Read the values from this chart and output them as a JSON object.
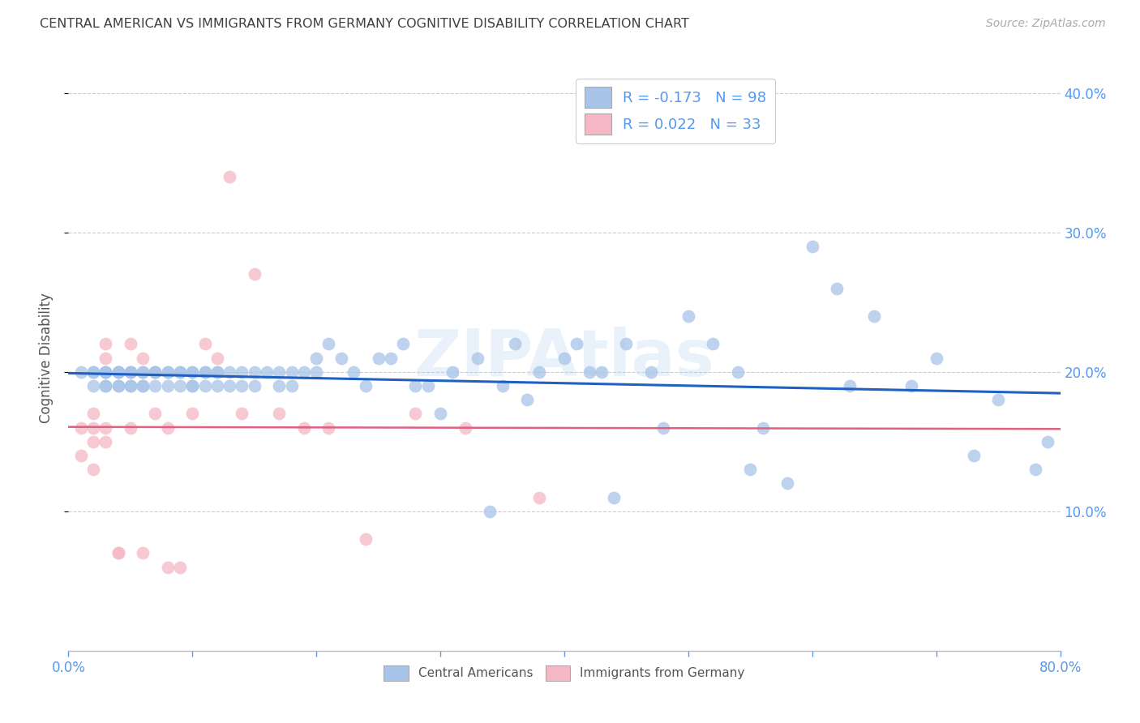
{
  "title": "CENTRAL AMERICAN VS IMMIGRANTS FROM GERMANY COGNITIVE DISABILITY CORRELATION CHART",
  "source": "Source: ZipAtlas.com",
  "ylabel": "Cognitive Disability",
  "xlim": [
    0.0,
    0.8
  ],
  "ylim": [
    0.0,
    0.42
  ],
  "yticks": [
    0.1,
    0.2,
    0.3,
    0.4
  ],
  "xticks": [
    0.0,
    0.1,
    0.2,
    0.3,
    0.4,
    0.5,
    0.6,
    0.7,
    0.8
  ],
  "blue_R": -0.173,
  "blue_N": 98,
  "pink_R": 0.022,
  "pink_N": 33,
  "blue_scatter_color": "#a8c4e8",
  "blue_line_color": "#2060c0",
  "pink_scatter_color": "#f5b8c4",
  "pink_line_color": "#e06080",
  "watermark": "ZIPAtlas",
  "grid_color": "#cccccc",
  "title_color": "#404040",
  "axis_label_color": "#555555",
  "tick_color": "#5599ee",
  "legend_text_color": "#5599ee",
  "blue_scatter_x": [
    0.01,
    0.02,
    0.02,
    0.02,
    0.03,
    0.03,
    0.03,
    0.03,
    0.03,
    0.04,
    0.04,
    0.04,
    0.04,
    0.04,
    0.05,
    0.05,
    0.05,
    0.05,
    0.05,
    0.06,
    0.06,
    0.06,
    0.06,
    0.07,
    0.07,
    0.07,
    0.07,
    0.08,
    0.08,
    0.08,
    0.09,
    0.09,
    0.09,
    0.1,
    0.1,
    0.1,
    0.1,
    0.11,
    0.11,
    0.11,
    0.12,
    0.12,
    0.12,
    0.13,
    0.13,
    0.14,
    0.14,
    0.15,
    0.15,
    0.16,
    0.17,
    0.17,
    0.18,
    0.18,
    0.19,
    0.2,
    0.2,
    0.21,
    0.22,
    0.23,
    0.24,
    0.25,
    0.26,
    0.27,
    0.28,
    0.3,
    0.31,
    0.33,
    0.35,
    0.36,
    0.38,
    0.4,
    0.41,
    0.43,
    0.45,
    0.47,
    0.5,
    0.52,
    0.55,
    0.58,
    0.6,
    0.63,
    0.65,
    0.68,
    0.7,
    0.73,
    0.75,
    0.78,
    0.79,
    0.44,
    0.48,
    0.54,
    0.62,
    0.34,
    0.29,
    0.37,
    0.42,
    0.56
  ],
  "blue_scatter_y": [
    0.2,
    0.2,
    0.19,
    0.2,
    0.2,
    0.19,
    0.2,
    0.19,
    0.2,
    0.2,
    0.19,
    0.2,
    0.19,
    0.2,
    0.2,
    0.19,
    0.2,
    0.19,
    0.2,
    0.2,
    0.19,
    0.2,
    0.19,
    0.2,
    0.2,
    0.19,
    0.2,
    0.2,
    0.19,
    0.2,
    0.2,
    0.19,
    0.2,
    0.2,
    0.19,
    0.2,
    0.19,
    0.2,
    0.19,
    0.2,
    0.2,
    0.19,
    0.2,
    0.2,
    0.19,
    0.2,
    0.19,
    0.2,
    0.19,
    0.2,
    0.2,
    0.19,
    0.2,
    0.19,
    0.2,
    0.21,
    0.2,
    0.22,
    0.21,
    0.2,
    0.19,
    0.21,
    0.21,
    0.22,
    0.19,
    0.17,
    0.2,
    0.21,
    0.19,
    0.22,
    0.2,
    0.21,
    0.22,
    0.2,
    0.22,
    0.2,
    0.24,
    0.22,
    0.13,
    0.12,
    0.29,
    0.19,
    0.24,
    0.19,
    0.21,
    0.14,
    0.18,
    0.13,
    0.15,
    0.11,
    0.16,
    0.2,
    0.26,
    0.1,
    0.19,
    0.18,
    0.2,
    0.16
  ],
  "pink_scatter_x": [
    0.01,
    0.01,
    0.02,
    0.02,
    0.02,
    0.02,
    0.03,
    0.03,
    0.03,
    0.03,
    0.04,
    0.04,
    0.05,
    0.05,
    0.06,
    0.07,
    0.08,
    0.09,
    0.1,
    0.11,
    0.12,
    0.13,
    0.15,
    0.17,
    0.19,
    0.21,
    0.24,
    0.28,
    0.32,
    0.38,
    0.14,
    0.06,
    0.08
  ],
  "pink_scatter_y": [
    0.16,
    0.14,
    0.17,
    0.15,
    0.13,
    0.16,
    0.22,
    0.21,
    0.15,
    0.16,
    0.07,
    0.07,
    0.22,
    0.16,
    0.21,
    0.17,
    0.16,
    0.06,
    0.17,
    0.22,
    0.21,
    0.34,
    0.27,
    0.17,
    0.16,
    0.16,
    0.08,
    0.17,
    0.16,
    0.11,
    0.17,
    0.07,
    0.06
  ]
}
